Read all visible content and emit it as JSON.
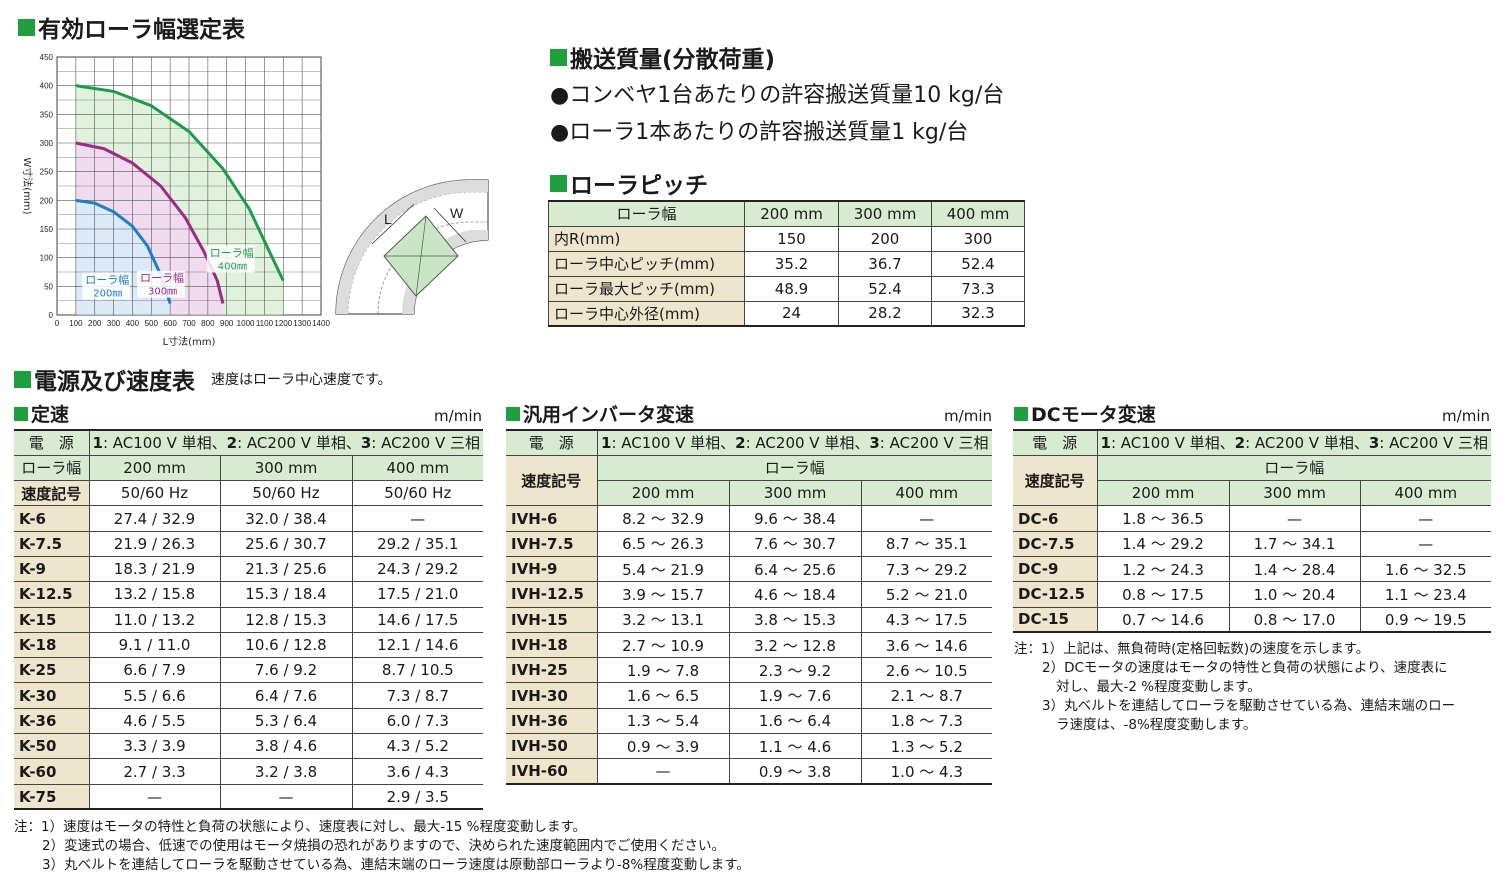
{
  "sections": {
    "effective_width_title": "有効ローラ幅選定表",
    "load_title": "搬送質量(分散荷重)",
    "pitch_title": "ローラピッチ",
    "power_title": "電源及び速度表",
    "power_subtitle": "速度はローラ中心速度です。"
  },
  "load": {
    "bullets": [
      "●コンベヤ1台あたりの許容搬送質量10 kg/台",
      "●ローラ1本あたりの許容搬送質量1 kg/台"
    ]
  },
  "curve_diagram": {
    "label_l": "L",
    "label_w": "W"
  },
  "chart_data": {
    "type": "line",
    "xlabel": "L寸法(mm)",
    "ylabel": "W寸法(mm)",
    "xlim": [
      0,
      1400
    ],
    "ylim": [
      0,
      450
    ],
    "x_ticks": [
      "0",
      "100",
      "200",
      "300",
      "400",
      "500",
      "600",
      "700",
      "800",
      "900",
      "1000",
      "1100",
      "1200",
      "1300",
      "1400"
    ],
    "y_ticks": [
      "0",
      "50",
      "100",
      "150",
      "200",
      "250",
      "300",
      "350",
      "400",
      "450"
    ],
    "grid": true,
    "series": [
      {
        "name": "ローラ幅 200㎜",
        "label_line1": "ローラ幅",
        "label_line2": "200㎜",
        "color": "#1f7fc4",
        "fill": "#dce9f8",
        "points": [
          [
            100,
            200
          ],
          [
            200,
            195
          ],
          [
            300,
            180
          ],
          [
            400,
            155
          ],
          [
            480,
            120
          ],
          [
            550,
            70
          ],
          [
            590,
            30
          ],
          [
            600,
            20
          ]
        ]
      },
      {
        "name": "ローラ幅 300㎜",
        "label_line1": "ローラ幅",
        "label_line2": "300㎜",
        "color": "#9a2a86",
        "fill": "#f1dcef",
        "points": [
          [
            100,
            300
          ],
          [
            250,
            290
          ],
          [
            400,
            265
          ],
          [
            550,
            225
          ],
          [
            680,
            170
          ],
          [
            780,
            110
          ],
          [
            850,
            60
          ],
          [
            880,
            20
          ]
        ]
      },
      {
        "name": "ローラ幅 400㎜",
        "label_line1": "ローラ幅",
        "label_line2": "400㎜",
        "color": "#1e9a4c",
        "fill": "#e0f2dc",
        "points": [
          [
            100,
            400
          ],
          [
            300,
            390
          ],
          [
            500,
            365
          ],
          [
            700,
            320
          ],
          [
            880,
            255
          ],
          [
            1020,
            185
          ],
          [
            1120,
            115
          ],
          [
            1200,
            60
          ]
        ]
      }
    ]
  },
  "pitch": {
    "headers": [
      "ローラ幅",
      "200 mm",
      "300 mm",
      "400 mm"
    ],
    "rows": [
      {
        "label": "内R(mm)",
        "values": [
          "150",
          "200",
          "300"
        ]
      },
      {
        "label": "ローラ中心ピッチ(mm)",
        "values": [
          "35.2",
          "36.7",
          "52.4"
        ]
      },
      {
        "label": "ローラ最大ピッチ(mm)",
        "values": [
          "48.9",
          "52.4",
          "73.3"
        ]
      },
      {
        "label": "ローラ中心外径(mm)",
        "values": [
          "24",
          "28.2",
          "32.3"
        ]
      }
    ]
  },
  "power_spec": "1: AC100 V 単相、2: AC200 V 単相、3: AC200 V 三相",
  "fixed": {
    "title": "定速",
    "unit": "m/min",
    "label_power": "電　源",
    "label_width": "ローラ幅",
    "label_code": "速度記号",
    "widths": [
      "200 mm",
      "300 mm",
      "400 mm"
    ],
    "freq": [
      "50/60 Hz",
      "50/60 Hz",
      "50/60 Hz"
    ],
    "rows": [
      {
        "code": "K-6",
        "values": [
          "27.4 / 32.9",
          "32.0 / 38.4",
          "—"
        ]
      },
      {
        "code": "K-7.5",
        "values": [
          "21.9 / 26.3",
          "25.6 / 30.7",
          "29.2 / 35.1"
        ]
      },
      {
        "code": "K-9",
        "values": [
          "18.3 / 21.9",
          "21.3 / 25.6",
          "24.3 / 29.2"
        ]
      },
      {
        "code": "K-12.5",
        "values": [
          "13.2 / 15.8",
          "15.3 / 18.4",
          "17.5 / 21.0"
        ]
      },
      {
        "code": "K-15",
        "values": [
          "11.0 / 13.2",
          "12.8 / 15.3",
          "14.6 / 17.5"
        ]
      },
      {
        "code": "K-18",
        "values": [
          "9.1 / 11.0",
          "10.6 / 12.8",
          "12.1 / 14.6"
        ]
      },
      {
        "code": "K-25",
        "values": [
          "6.6 / 7.9",
          "7.6 / 9.2",
          "8.7 / 10.5"
        ]
      },
      {
        "code": "K-30",
        "values": [
          "5.5 / 6.6",
          "6.4 / 7.6",
          "7.3 / 8.7"
        ]
      },
      {
        "code": "K-36",
        "values": [
          "4.6 / 5.5",
          "5.3 / 6.4",
          "6.0 / 7.3"
        ]
      },
      {
        "code": "K-50",
        "values": [
          "3.3 / 3.9",
          "3.8 / 4.6",
          "4.3 / 5.2"
        ]
      },
      {
        "code": "K-60",
        "values": [
          "2.7 / 3.3",
          "3.2 / 3.8",
          "3.6 / 4.3"
        ]
      },
      {
        "code": "K-75",
        "values": [
          "—",
          "—",
          "2.9 / 3.5"
        ]
      }
    ],
    "notes": [
      "注：1）速度はモータの特性と負荷の状態により、速度表に対し、最大-15 %程度変動します。",
      "2）変速式の場合、低速での使用はモータ焼損の恐れがありますので、決められた速度範囲内でご使用ください。",
      "3）丸ベルトを連結してローラを駆動させている為、連結末端のローラ速度は原動部ローラより-8%程度変動します。"
    ]
  },
  "inverter": {
    "title": "汎用インバータ変速",
    "unit": "m/min",
    "label_power": "電　源",
    "label_code": "速度記号",
    "label_width": "ローラ幅",
    "widths": [
      "200 mm",
      "300 mm",
      "400 mm"
    ],
    "rows": [
      {
        "code": "IVH-6",
        "values": [
          "8.2 ～ 32.9",
          "9.6 ～ 38.4",
          "—"
        ]
      },
      {
        "code": "IVH-7.5",
        "values": [
          "6.5 ～ 26.3",
          "7.6 ～ 30.7",
          "8.7 ～ 35.1"
        ]
      },
      {
        "code": "IVH-9",
        "values": [
          "5.4 ～ 21.9",
          "6.4 ～ 25.6",
          "7.3 ～ 29.2"
        ]
      },
      {
        "code": "IVH-12.5",
        "values": [
          "3.9 ～ 15.7",
          "4.6 ～ 18.4",
          "5.2 ～ 21.0"
        ]
      },
      {
        "code": "IVH-15",
        "values": [
          "3.2 ～ 13.1",
          "3.8 ～ 15.3",
          "4.3 ～ 17.5"
        ]
      },
      {
        "code": "IVH-18",
        "values": [
          "2.7 ～ 10.9",
          "3.2 ～ 12.8",
          "3.6 ～ 14.6"
        ]
      },
      {
        "code": "IVH-25",
        "values": [
          "1.9 ～ 7.8",
          "2.3 ～ 9.2",
          "2.6 ～ 10.5"
        ]
      },
      {
        "code": "IVH-30",
        "values": [
          "1.6 ～ 6.5",
          "1.9 ～ 7.6",
          "2.1 ～ 8.7"
        ]
      },
      {
        "code": "IVH-36",
        "values": [
          "1.3 ～ 5.4",
          "1.6 ～ 6.4",
          "1.8 ～ 7.3"
        ]
      },
      {
        "code": "IVH-50",
        "values": [
          "0.9 ～ 3.9",
          "1.1 ～ 4.6",
          "1.3 ～ 5.2"
        ]
      },
      {
        "code": "IVH-60",
        "values": [
          "—",
          "0.9 ～ 3.8",
          "1.0 ～ 4.3"
        ]
      }
    ]
  },
  "dc": {
    "title": "DCモータ変速",
    "unit": "m/min",
    "label_power": "電　源",
    "label_code": "速度記号",
    "label_width": "ローラ幅",
    "widths": [
      "200 mm",
      "300 mm",
      "400 mm"
    ],
    "rows": [
      {
        "code": "DC-6",
        "values": [
          "1.8 ～ 36.5",
          "—",
          "—"
        ]
      },
      {
        "code": "DC-7.5",
        "values": [
          "1.4 ～ 29.2",
          "1.7 ～ 34.1",
          "—"
        ]
      },
      {
        "code": "DC-9",
        "values": [
          "1.2 ～ 24.3",
          "1.4 ～ 28.4",
          "1.6 ～ 32.5"
        ]
      },
      {
        "code": "DC-12.5",
        "values": [
          "0.8 ～ 17.5",
          "1.0 ～ 20.4",
          "1.1 ～ 23.4"
        ]
      },
      {
        "code": "DC-15",
        "values": [
          "0.7 ～ 14.6",
          "0.8 ～ 17.0",
          "0.9 ～ 19.5"
        ]
      }
    ],
    "notes": [
      "注：1）上記は、無負荷時(定格回転数)の速度を示します。",
      "2）DCモータの速度はモータの特性と負荷の状態により、速度表に",
      "対し、最大-2 %程度変動します。",
      "3）丸ベルトを連結してローラを駆動させている為、連結末端のロー",
      "ラ速度は、-8%程度変動します。"
    ]
  }
}
